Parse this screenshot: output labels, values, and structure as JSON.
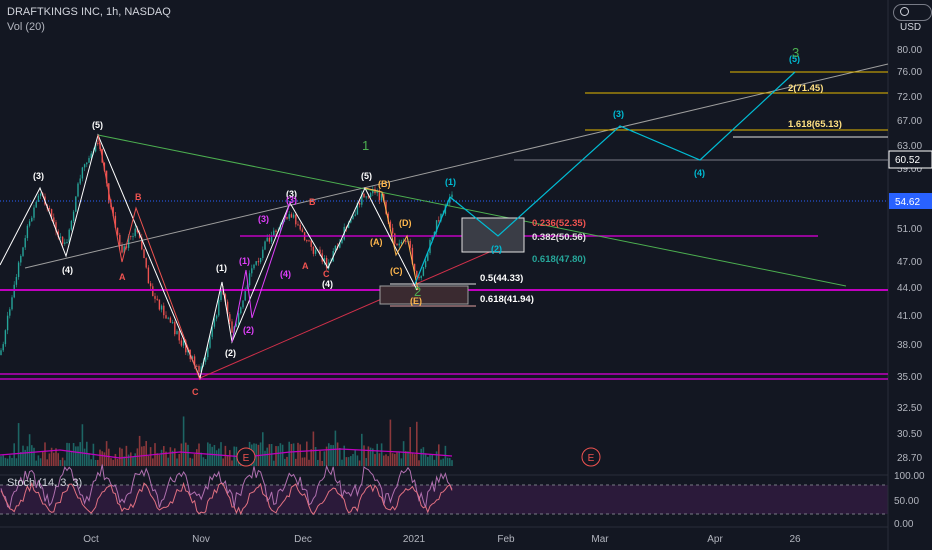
{
  "header": {
    "title": "DRAFTKINGS INC, 1h, NASDAQ",
    "volume_label": "Vol (20)",
    "currency": "USD"
  },
  "stoch_label": "Stoch (14, 3, 3)",
  "colors": {
    "bg": "#131722",
    "bull": "#26a69a",
    "bear": "#ef5350",
    "purple": "#c000c0",
    "cyan": "#00bcd4",
    "green": "#4caf50",
    "gold": "#e6b800"
  },
  "price_axis": [
    "80.00",
    "76.00",
    "72.00",
    "67.00",
    "63.00",
    "59.00",
    "54.62",
    "51.00",
    "47.00",
    "44.00",
    "41.00",
    "38.00",
    "35.00",
    "32.50",
    "30.50",
    "28.70"
  ],
  "price_badges": {
    "current": "54.62",
    "level": "60.52"
  },
  "stoch_axis": [
    "100.00",
    "50.00",
    "0.00"
  ],
  "time_axis": [
    "Oct",
    "Nov",
    "Dec",
    "2021",
    "Feb",
    "Mar",
    "Apr",
    "26"
  ],
  "fib_labels": {
    "f0236": "0.236(52.35)",
    "f0382": "0.382(50.56)",
    "f0618b": "0.618(47.80)",
    "f05": "0.5(44.33)",
    "f0618a": "0.618(41.94)",
    "f1618": "1.618(65.13)",
    "f2": "2(71.45)"
  },
  "wave_labels": {
    "w3a": "(3)",
    "w4a": "(4)",
    "w5a": "(5)",
    "wB": "B",
    "wA": "A",
    "wC": "C",
    "w1": "(1)",
    "w2": "(2)",
    "w1m": "(1)",
    "w2m": "(2)",
    "w3m": "(3)",
    "w4m": "(4)",
    "w3b": "(3)",
    "w3bm": "(3)",
    "w5bm": "(5)",
    "wBb": "B",
    "wA2": "A",
    "wC2": "C",
    "w4b": "(4)",
    "w5b": "(5)",
    "wBB": "(B)",
    "wAA": "(A)",
    "wD": "(D)",
    "wCC": "(C)",
    "wE": "(E)",
    "wave1": "1",
    "wave2": "2",
    "wave3": "3",
    "w1c": "(1)",
    "w2c": "(2)",
    "w3c": "(3)",
    "w4c": "(4)",
    "w5c": "(5)"
  },
  "markers": {
    "earnings": "E"
  },
  "icons": {
    "currency_globe": "globe-icon"
  }
}
